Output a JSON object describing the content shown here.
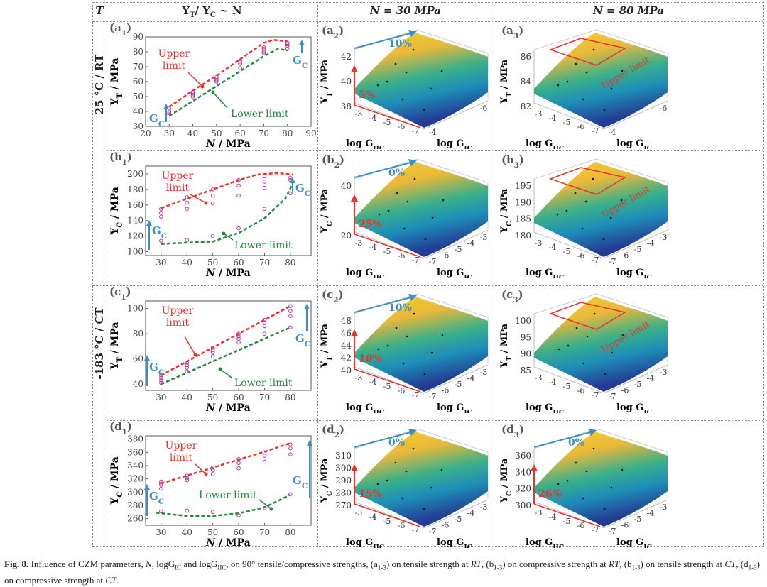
{
  "header": {
    "t": "T",
    "col1": [
      "Y",
      "T",
      "/ Y",
      "C",
      " ~ N"
    ],
    "col2": "N = 30 MPa",
    "col3": "N = 80 MPa"
  },
  "row_labels": {
    "rt": "25 °C / RT",
    "ct": "-183 °C / CT"
  },
  "colors": {
    "upper": "#e8322b",
    "lower": "#1e8c3a",
    "gc": "#3a8fc8",
    "points": "#c0399a"
  },
  "chart_data": [
    {
      "id": "a1",
      "type": "scatter",
      "label": [
        "(a",
        "1",
        ")"
      ],
      "ylabel": [
        "Y",
        "T",
        " / MPa"
      ],
      "xlabel": [
        "N",
        " / MPa"
      ],
      "xlim": [
        20,
        90
      ],
      "ylim": [
        30,
        90
      ],
      "xticks": [
        20,
        30,
        40,
        50,
        60,
        70,
        80,
        90
      ],
      "yticks": [
        30,
        40,
        50,
        60,
        70,
        80,
        90
      ],
      "upper": [
        [
          30,
          43
        ],
        [
          40,
          54
        ],
        [
          50,
          64
        ],
        [
          60,
          75
        ],
        [
          70,
          86
        ],
        [
          74,
          88
        ],
        [
          80,
          87
        ]
      ],
      "lower": [
        [
          30,
          37
        ],
        [
          40,
          47
        ],
        [
          50,
          57
        ],
        [
          60,
          67
        ],
        [
          70,
          77
        ],
        [
          76,
          82
        ],
        [
          80,
          81
        ]
      ],
      "points": [
        [
          30,
          38
        ],
        [
          30,
          39
        ],
        [
          30,
          40
        ],
        [
          30,
          42
        ],
        [
          40,
          50
        ],
        [
          40,
          51
        ],
        [
          40,
          52
        ],
        [
          40,
          53
        ],
        [
          50,
          60
        ],
        [
          50,
          61
        ],
        [
          50,
          62
        ],
        [
          50,
          63
        ],
        [
          60,
          69
        ],
        [
          60,
          72
        ],
        [
          60,
          73
        ],
        [
          60,
          74
        ],
        [
          70,
          79
        ],
        [
          70,
          80
        ],
        [
          70,
          82
        ],
        [
          70,
          83
        ],
        [
          80,
          82
        ],
        [
          80,
          84
        ],
        [
          80,
          85
        ],
        [
          80,
          86
        ]
      ],
      "upper_text": [
        "Upper",
        "limit"
      ],
      "lower_text": "Lower limit",
      "gc": [
        "G",
        "C"
      ]
    },
    {
      "id": "b1",
      "type": "scatter",
      "label": [
        "(b",
        "1",
        ")"
      ],
      "ylabel": [
        "Y",
        "C",
        " / MPa"
      ],
      "xlabel": [
        "N",
        " / MPa"
      ],
      "xlim": [
        24,
        88
      ],
      "ylim": [
        95,
        210
      ],
      "xticks": [
        30,
        40,
        50,
        60,
        70,
        80
      ],
      "yticks": [
        100,
        120,
        140,
        160,
        180,
        200
      ],
      "upper": [
        [
          30,
          156
        ],
        [
          40,
          168
        ],
        [
          50,
          180
        ],
        [
          60,
          192
        ],
        [
          67,
          199
        ],
        [
          75,
          201
        ],
        [
          81,
          199
        ]
      ],
      "lower": [
        [
          30,
          110
        ],
        [
          50,
          113
        ],
        [
          60,
          124
        ],
        [
          70,
          143
        ],
        [
          78,
          168
        ],
        [
          81,
          188
        ]
      ],
      "points": [
        [
          30,
          114
        ],
        [
          30,
          145
        ],
        [
          30,
          150
        ],
        [
          30,
          155
        ],
        [
          40,
          115
        ],
        [
          40,
          155
        ],
        [
          40,
          163
        ],
        [
          40,
          170
        ],
        [
          50,
          120
        ],
        [
          50,
          162
        ],
        [
          50,
          172
        ],
        [
          50,
          180
        ],
        [
          60,
          130
        ],
        [
          60,
          172
        ],
        [
          60,
          185
        ],
        [
          60,
          192
        ],
        [
          70,
          155
        ],
        [
          70,
          182
        ],
        [
          70,
          190
        ],
        [
          70,
          197
        ],
        [
          80,
          175
        ],
        [
          80,
          192
        ],
        [
          80,
          195
        ]
      ],
      "upper_text": [
        "Upper",
        "limit"
      ],
      "lower_text": "Lower limit",
      "gc": [
        "G",
        "C"
      ]
    },
    {
      "id": "c1",
      "type": "scatter",
      "label": [
        "(c",
        "1",
        ")"
      ],
      "ylabel": [
        "Y",
        "T",
        " / MPa"
      ],
      "xlabel": [
        "N",
        " / MPa"
      ],
      "xlim": [
        24,
        88
      ],
      "ylim": [
        35,
        106
      ],
      "xticks": [
        30,
        40,
        50,
        60,
        70,
        80
      ],
      "yticks": [
        40,
        60,
        80,
        100
      ],
      "upper": [
        [
          30,
          47
        ],
        [
          40,
          58
        ],
        [
          50,
          69
        ],
        [
          60,
          80
        ],
        [
          70,
          91
        ],
        [
          80,
          102
        ]
      ],
      "lower": [
        [
          30,
          40
        ],
        [
          40,
          49
        ],
        [
          50,
          58
        ],
        [
          60,
          67
        ],
        [
          70,
          76
        ],
        [
          80,
          85
        ]
      ],
      "points": [
        [
          30,
          41
        ],
        [
          30,
          43
        ],
        [
          30,
          45
        ],
        [
          30,
          47
        ],
        [
          40,
          50
        ],
        [
          40,
          53
        ],
        [
          40,
          55
        ],
        [
          40,
          57
        ],
        [
          50,
          62
        ],
        [
          50,
          65
        ],
        [
          50,
          67
        ],
        [
          50,
          69
        ],
        [
          60,
          73
        ],
        [
          60,
          76
        ],
        [
          60,
          78
        ],
        [
          60,
          80
        ],
        [
          70,
          80
        ],
        [
          70,
          86
        ],
        [
          70,
          89
        ],
        [
          70,
          91
        ],
        [
          80,
          85
        ],
        [
          80,
          94
        ],
        [
          80,
          98
        ],
        [
          80,
          102
        ]
      ],
      "upper_text": [
        "Upper",
        "limit"
      ],
      "lower_text": "Lower limit",
      "gc": [
        "G",
        "C"
      ]
    },
    {
      "id": "d1",
      "type": "scatter",
      "label": [
        "(d",
        "1",
        ")"
      ],
      "ylabel": [
        "Y",
        "C",
        " / MPa"
      ],
      "xlabel": [
        "N",
        " / MPa"
      ],
      "xlim": [
        24,
        88
      ],
      "ylim": [
        250,
        385
      ],
      "xticks": [
        30,
        40,
        50,
        60,
        70,
        80
      ],
      "yticks": [
        260,
        280,
        300,
        320,
        340,
        360,
        380
      ],
      "upper": [
        [
          30,
          313
        ],
        [
          40,
          325
        ],
        [
          50,
          337
        ],
        [
          60,
          349
        ],
        [
          70,
          361
        ],
        [
          80,
          374
        ]
      ],
      "lower": [
        [
          28,
          269
        ],
        [
          40,
          264
        ],
        [
          50,
          264
        ],
        [
          60,
          268
        ],
        [
          70,
          277
        ],
        [
          80,
          296
        ]
      ],
      "points": [
        [
          30,
          271
        ],
        [
          30,
          305
        ],
        [
          30,
          311
        ],
        [
          30,
          313
        ],
        [
          30,
          316
        ],
        [
          40,
          272
        ],
        [
          40,
          318
        ],
        [
          40,
          321
        ],
        [
          40,
          325
        ],
        [
          50,
          270
        ],
        [
          50,
          327
        ],
        [
          50,
          333
        ],
        [
          50,
          337
        ],
        [
          60,
          265
        ],
        [
          60,
          336
        ],
        [
          60,
          344
        ],
        [
          60,
          350
        ],
        [
          70,
          276
        ],
        [
          70,
          346
        ],
        [
          70,
          355
        ],
        [
          70,
          360
        ],
        [
          80,
          297
        ],
        [
          80,
          357
        ],
        [
          80,
          366
        ],
        [
          80,
          372
        ]
      ],
      "upper_text": [
        "Upper",
        "limit"
      ],
      "lower_text": "Lower limit",
      "gc": [
        "G",
        "C"
      ]
    }
  ],
  "surfaces": [
    {
      "id": "a2",
      "type": "surface",
      "label": [
        "(a",
        "2",
        ")"
      ],
      "zlabel": [
        "Y",
        "T",
        " / MPa"
      ],
      "zticks": [
        "42",
        "40",
        "38"
      ],
      "xticks": [
        "-3",
        "-4",
        "-5",
        "-6",
        "-7"
      ],
      "yticks": [
        "-4",
        "-6"
      ],
      "xlabel": [
        "log G",
        "IIC"
      ],
      "ylabel": [
        "log G",
        "IC"
      ],
      "up_pct": "10%",
      "low_pct": "5%"
    },
    {
      "id": "a3",
      "type": "surface",
      "label": [
        "(a",
        "3",
        ")"
      ],
      "zlabel": [
        "Y",
        "T",
        " / MPa"
      ],
      "zticks": [
        "86",
        "84",
        "82"
      ],
      "xticks": [
        "-3",
        "-4",
        "-5",
        "-6",
        "-7"
      ],
      "yticks": [
        "-4",
        "-6"
      ],
      "xlabel": [
        "log G",
        "IIC"
      ],
      "ylabel": [
        "log G",
        "IC"
      ],
      "limit_text": "Upper limit"
    },
    {
      "id": "b2",
      "type": "surface",
      "label": [
        "(b",
        "2",
        ")"
      ],
      "zlabel": [
        "Y",
        "C",
        " / MPa"
      ],
      "zticks": [
        "40",
        "20"
      ],
      "xticks": [
        "-3",
        "-4",
        "-5",
        "-6",
        "-7"
      ],
      "yticks": [
        "-7",
        "-6",
        "-5",
        "-4",
        "-3"
      ],
      "xlabel": [
        "log G",
        "IIC"
      ],
      "ylabel": [
        "log G",
        "IC"
      ],
      "up_pct": "0%",
      "low_pct": "25%"
    },
    {
      "id": "b3",
      "type": "surface",
      "label": [
        "(b",
        "3",
        ")"
      ],
      "zlabel": [
        "Y",
        "C",
        " / MPa"
      ],
      "zticks": [
        "195",
        "190",
        "185",
        "180"
      ],
      "xticks": [
        "-3",
        "-4",
        "-5",
        "-6",
        "-7"
      ],
      "yticks": [
        "-7",
        "-6",
        "-5",
        "-4",
        "-3"
      ],
      "xlabel": [
        "log G",
        "IIC"
      ],
      "ylabel": [
        "log G",
        "IC"
      ],
      "limit_text": "Upper limit"
    },
    {
      "id": "c2",
      "type": "surface",
      "label": [
        "(c",
        "2",
        ")"
      ],
      "zlabel": [
        "Y",
        "T",
        " / MPa"
      ],
      "zticks": [
        "48",
        "46",
        "44",
        "42",
        "40"
      ],
      "xticks": [
        "-3",
        "-4",
        "-5",
        "-6",
        "-7"
      ],
      "yticks": [
        "-7",
        "-6",
        "-5",
        "-4",
        "-3"
      ],
      "xlabel": [
        "log G",
        "IIC"
      ],
      "ylabel": [
        "log G",
        "IC"
      ],
      "up_pct": "10%",
      "low_pct": "10%"
    },
    {
      "id": "c3",
      "type": "surface",
      "label": [
        "(c",
        "3",
        ")"
      ],
      "zlabel": [
        "Y",
        "T",
        " / MPa"
      ],
      "zticks": [
        "100",
        "95",
        "90",
        "85"
      ],
      "xticks": [
        "-3",
        "-4",
        "-5",
        "-6",
        "-7"
      ],
      "yticks": [
        "-7",
        "-6",
        "-5",
        "-4",
        "-3"
      ],
      "xlabel": [
        "log G",
        "IIC"
      ],
      "ylabel": [
        "log G",
        "IC"
      ],
      "limit_text": "Upper limit"
    },
    {
      "id": "d2",
      "type": "surface",
      "label": [
        "(d",
        "2",
        ")"
      ],
      "zlabel": [
        "Y",
        "C",
        " / MPa"
      ],
      "zticks": [
        "310",
        "300",
        "290",
        "280",
        "270"
      ],
      "xticks": [
        "-3",
        "-4",
        "-5",
        "-6",
        "-7"
      ],
      "yticks": [
        "-7",
        "-6",
        "-5",
        "-4",
        "-3"
      ],
      "xlabel": [
        "log G",
        "IIC"
      ],
      "ylabel": [
        "log G",
        "IC"
      ],
      "up_pct": "0%",
      "low_pct": "15%"
    },
    {
      "id": "d3",
      "type": "surface",
      "label": [
        "(d",
        "3",
        ")"
      ],
      "zlabel": [
        "Y",
        "C",
        " / MPa"
      ],
      "zticks": [
        "360",
        "340",
        "320",
        "300"
      ],
      "xticks": [
        "-3",
        "-4",
        "-5",
        "-6",
        "-7"
      ],
      "yticks": [
        "-7",
        "-6",
        "-5",
        "-4",
        "-3"
      ],
      "xlabel": [
        "log G",
        "IIC"
      ],
      "ylabel": [
        "log G",
        "IC"
      ],
      "up_pct": "0%",
      "low_pct": "26%"
    }
  ],
  "caption": [
    [
      "Fig. 8.",
      "b"
    ],
    [
      " Influence of CZM parameters, ",
      ""
    ],
    [
      "N",
      "i"
    ],
    [
      ", logG",
      ""
    ],
    [
      "IC",
      "sub"
    ],
    [
      " and logG",
      ""
    ],
    [
      "IIC",
      "sub"
    ],
    [
      ", on 90° tensile/compressive strengths, (a",
      ""
    ],
    [
      "1-3",
      "sub"
    ],
    [
      ") on tensile strength at ",
      ""
    ],
    [
      "RT",
      "i"
    ],
    [
      ", (b",
      ""
    ],
    [
      "1-3",
      "sub"
    ],
    [
      ") on compressive strength at ",
      ""
    ],
    [
      "RT",
      "i"
    ],
    [
      ", (b",
      ""
    ],
    [
      "1-3",
      "sub"
    ],
    [
      ") on tensile strength at ",
      ""
    ],
    [
      "CT",
      "i"
    ],
    [
      ", (d",
      ""
    ],
    [
      "1-3",
      "sub"
    ],
    [
      ") on compressive strength at ",
      ""
    ],
    [
      "CT",
      "i"
    ],
    [
      ".",
      ""
    ]
  ]
}
